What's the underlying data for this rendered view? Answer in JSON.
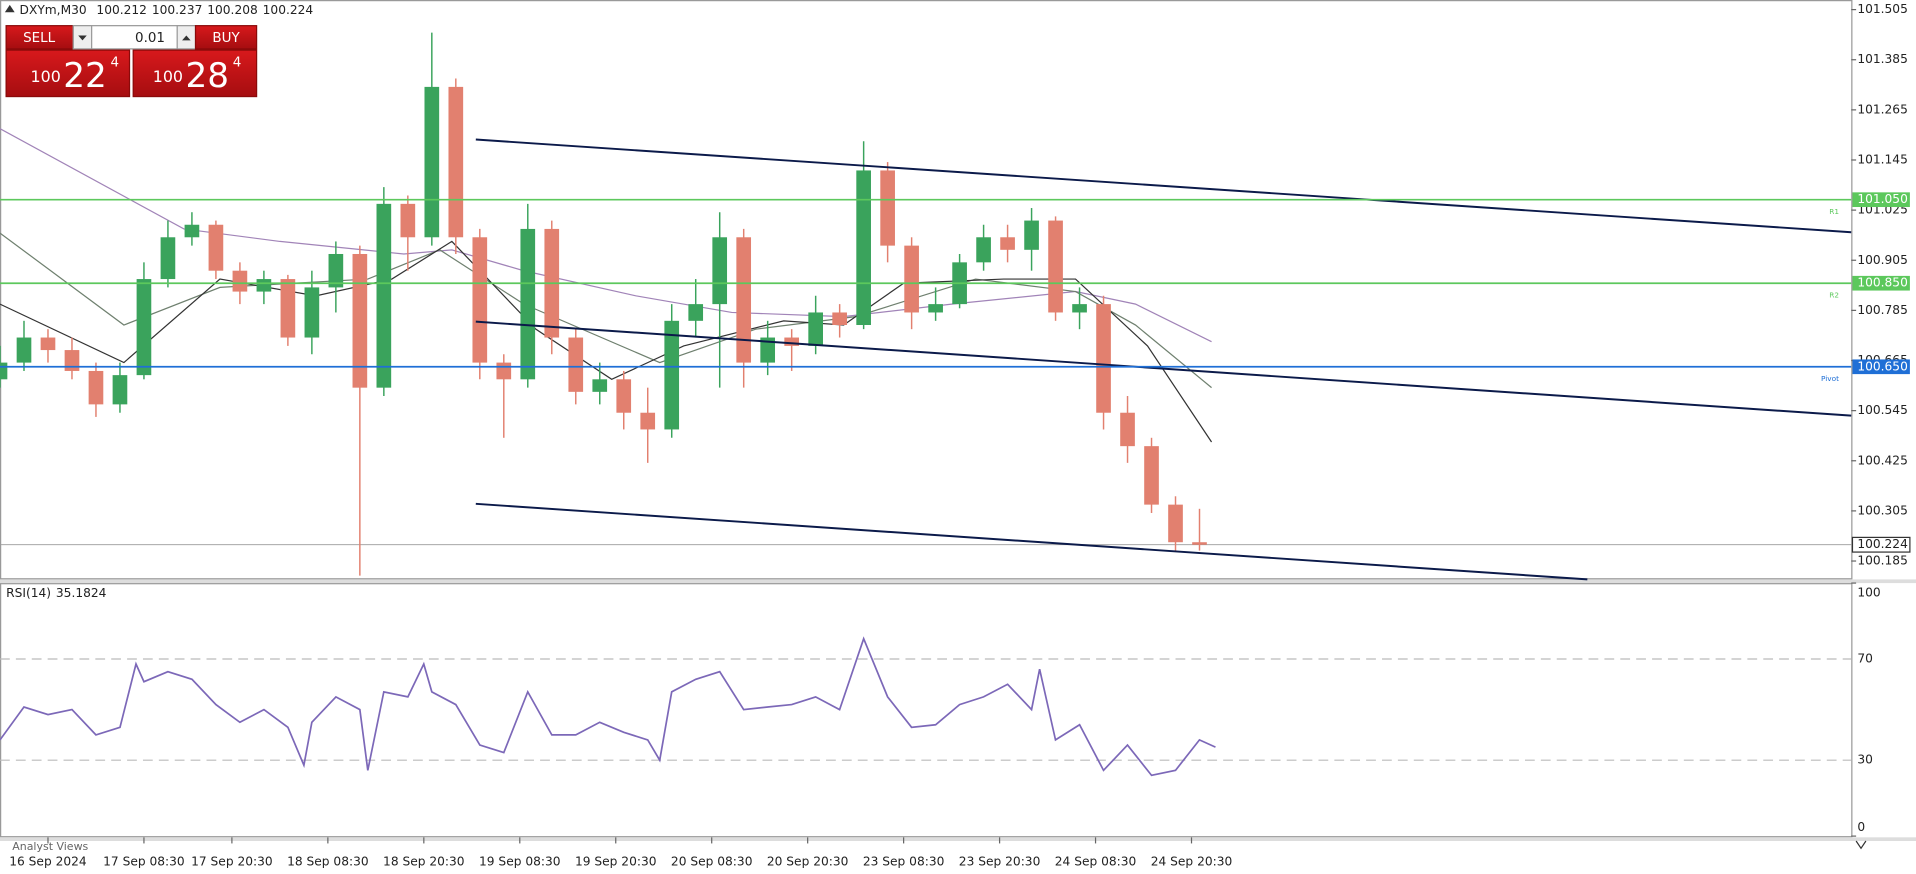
{
  "header": {
    "symbol": "DXYm,M30",
    "ohlc": [
      100.212,
      100.237,
      100.208,
      100.224
    ]
  },
  "trade_panel": {
    "sell": "SELL",
    "buy": "BUY",
    "lot": 0.01,
    "sell_price": {
      "prefix": "100",
      "big": "22",
      "small": "4"
    },
    "buy_price": {
      "prefix": "100",
      "big": "28",
      "small": "4"
    }
  },
  "footer": {
    "tab": "Analyst Views"
  },
  "chart_data": [
    {
      "type": "candlestick",
      "up_color": "#3aa35c",
      "down_color": "#e2806f",
      "xlim": [
        0,
        463
      ],
      "ylim": [
        100.141,
        101.528
      ],
      "yticks": [
        101.505,
        101.385,
        101.265,
        101.145,
        101.025,
        100.905,
        100.785,
        100.665,
        100.545,
        100.425,
        100.305,
        100.185
      ],
      "xticks": [
        {
          "value": 12,
          "label": "16 Sep 2024"
        },
        {
          "value": 36,
          "label": "17 Sep 08:30"
        },
        {
          "value": 58,
          "label": "17 Sep 20:30"
        },
        {
          "value": 82,
          "label": "18 Sep 08:30"
        },
        {
          "value": 106,
          "label": "18 Sep 20:30"
        },
        {
          "value": 130,
          "label": "19 Sep 08:30"
        },
        {
          "value": 154,
          "label": "19 Sep 20:30"
        },
        {
          "value": 178,
          "label": "20 Sep 08:30"
        },
        {
          "value": 202,
          "label": "20 Sep 20:30"
        },
        {
          "value": 226,
          "label": "23 Sep 08:30"
        },
        {
          "value": 250,
          "label": "23 Sep 20:30"
        },
        {
          "value": 274,
          "label": "24 Sep 08:30"
        },
        {
          "value": 298,
          "label": "24 Sep 20:30"
        }
      ],
      "x": [
        0,
        6,
        12,
        18,
        24,
        30,
        36,
        42,
        48,
        54,
        60,
        66,
        72,
        78,
        84,
        90,
        96,
        102,
        108,
        114,
        120,
        126,
        132,
        138,
        144,
        150,
        156,
        162,
        168,
        174,
        180,
        186,
        192,
        198,
        204,
        210,
        216,
        222,
        228,
        234,
        240,
        246,
        252,
        258,
        264,
        270,
        276,
        282,
        288,
        294,
        300
      ],
      "open": [
        100.62,
        100.66,
        100.72,
        100.69,
        100.64,
        100.56,
        100.63,
        100.86,
        100.96,
        100.99,
        100.88,
        100.83,
        100.86,
        100.72,
        100.84,
        100.92,
        100.6,
        101.04,
        100.96,
        101.32,
        100.96,
        100.66,
        100.62,
        100.98,
        100.72,
        100.59,
        100.62,
        100.54,
        100.5,
        100.76,
        100.8,
        100.96,
        100.66,
        100.72,
        100.7,
        100.78,
        100.75,
        101.12,
        100.94,
        100.78,
        100.8,
        100.9,
        100.96,
        100.93,
        101.0,
        100.78,
        100.8,
        100.54,
        100.46,
        100.32,
        100.23
      ],
      "high": [
        100.7,
        100.76,
        100.74,
        100.72,
        100.66,
        100.66,
        100.9,
        101.0,
        101.02,
        101.0,
        100.9,
        100.88,
        100.87,
        100.88,
        100.95,
        100.94,
        101.08,
        101.06,
        101.45,
        101.34,
        100.98,
        100.68,
        101.04,
        101.0,
        100.74,
        100.66,
        100.64,
        100.6,
        100.8,
        100.86,
        101.02,
        100.98,
        100.76,
        100.74,
        100.82,
        100.8,
        101.19,
        101.14,
        100.96,
        100.84,
        100.92,
        100.99,
        100.99,
        101.03,
        101.01,
        100.84,
        100.82,
        100.58,
        100.48,
        100.34,
        100.31
      ],
      "low": [
        100.6,
        100.64,
        100.66,
        100.62,
        100.53,
        100.54,
        100.62,
        100.84,
        100.94,
        100.86,
        100.8,
        100.8,
        100.7,
        100.68,
        100.78,
        100.15,
        100.58,
        100.88,
        100.94,
        100.92,
        100.62,
        100.48,
        100.6,
        100.68,
        100.56,
        100.56,
        100.5,
        100.42,
        100.48,
        100.72,
        100.6,
        100.6,
        100.63,
        100.64,
        100.68,
        100.72,
        100.74,
        100.9,
        100.74,
        100.76,
        100.79,
        100.88,
        100.9,
        100.88,
        100.76,
        100.74,
        100.5,
        100.42,
        100.3,
        100.21,
        100.21
      ],
      "close": [
        100.66,
        100.72,
        100.69,
        100.64,
        100.56,
        100.63,
        100.86,
        100.96,
        100.99,
        100.88,
        100.83,
        100.86,
        100.72,
        100.84,
        100.92,
        100.6,
        101.04,
        100.96,
        101.32,
        100.96,
        100.66,
        100.62,
        100.98,
        100.72,
        100.59,
        100.62,
        100.54,
        100.5,
        100.76,
        100.8,
        100.96,
        100.66,
        100.72,
        100.7,
        100.78,
        100.75,
        101.12,
        100.94,
        100.78,
        100.8,
        100.9,
        100.96,
        100.93,
        101.0,
        100.78,
        100.8,
        100.54,
        100.46,
        100.32,
        100.23,
        100.224
      ],
      "moving_averages": [
        {
          "color": "#a184b8",
          "x": [
            0,
            46,
            70,
            101,
            113,
            131,
            159,
            183,
            211,
            238,
            269,
            284,
            303
          ],
          "values": [
            101.22,
            100.98,
            100.95,
            100.92,
            100.93,
            100.88,
            100.82,
            100.78,
            100.77,
            100.8,
            100.83,
            100.8,
            100.71
          ]
        },
        {
          "color": "#6f806f",
          "x": [
            0,
            31,
            55,
            92,
            110,
            131,
            165,
            189,
            214,
            244,
            269,
            284,
            303
          ],
          "values": [
            100.97,
            100.75,
            100.84,
            100.86,
            100.93,
            100.8,
            100.66,
            100.74,
            100.77,
            100.86,
            100.83,
            100.75,
            100.6
          ]
        },
        {
          "color": "#333333",
          "x": [
            0,
            31,
            55,
            79,
            98,
            113,
            134,
            153,
            171,
            196,
            211,
            226,
            251,
            269,
            287,
            303
          ],
          "values": [
            100.8,
            100.66,
            100.86,
            100.82,
            100.86,
            100.95,
            100.74,
            100.62,
            100.7,
            100.76,
            100.75,
            100.85,
            100.86,
            100.86,
            100.7,
            100.47
          ]
        }
      ],
      "trendlines": [
        {
          "x": [
            119,
            463
          ],
          "y": [
            101.194,
            100.972
          ]
        },
        {
          "x": [
            119,
            463
          ],
          "y": [
            100.758,
            100.533
          ]
        },
        {
          "x": [
            119,
            397
          ],
          "y": [
            100.322,
            100.141
          ]
        }
      ],
      "levels": [
        {
          "value": 101.05,
          "value_label": "101.050",
          "label": "R1",
          "color": "#5cc85c"
        },
        {
          "value": 100.85,
          "value_label": "100.850",
          "label": "R2",
          "color": "#5cc85c"
        },
        {
          "value": 100.65,
          "value_label": "100.650",
          "label": "Pivot",
          "color": "#1f6fd6"
        }
      ],
      "current": 100.224
    },
    {
      "type": "line",
      "title": "RSI(14)",
      "color": "#7c68b8",
      "xlim": [
        0,
        463
      ],
      "ylim": [
        0,
        100
      ],
      "yticks": [
        0,
        30,
        70,
        100
      ],
      "x": [
        0,
        6,
        12,
        18,
        24,
        30,
        34,
        36,
        42,
        48,
        54,
        60,
        66,
        72,
        76,
        78,
        84,
        90,
        92,
        96,
        102,
        106,
        108,
        114,
        120,
        126,
        132,
        138,
        144,
        150,
        156,
        162,
        165,
        168,
        174,
        180,
        186,
        192,
        198,
        204,
        210,
        216,
        222,
        228,
        234,
        240,
        246,
        252,
        258,
        260,
        264,
        270,
        276,
        282,
        288,
        294,
        300,
        304
      ],
      "values": [
        38,
        51,
        48,
        50,
        40,
        43,
        68,
        61,
        65,
        62,
        52,
        45,
        50,
        43,
        28,
        45,
        55,
        50,
        26,
        57,
        55,
        68,
        57,
        52,
        36,
        33,
        57,
        40,
        40,
        45,
        41,
        38,
        30,
        57,
        62,
        65,
        50,
        51,
        52,
        55,
        50,
        78,
        55,
        43,
        44,
        52,
        55,
        60,
        50,
        66,
        38,
        44,
        26,
        36,
        24,
        26,
        38,
        35.1824
      ]
    }
  ]
}
